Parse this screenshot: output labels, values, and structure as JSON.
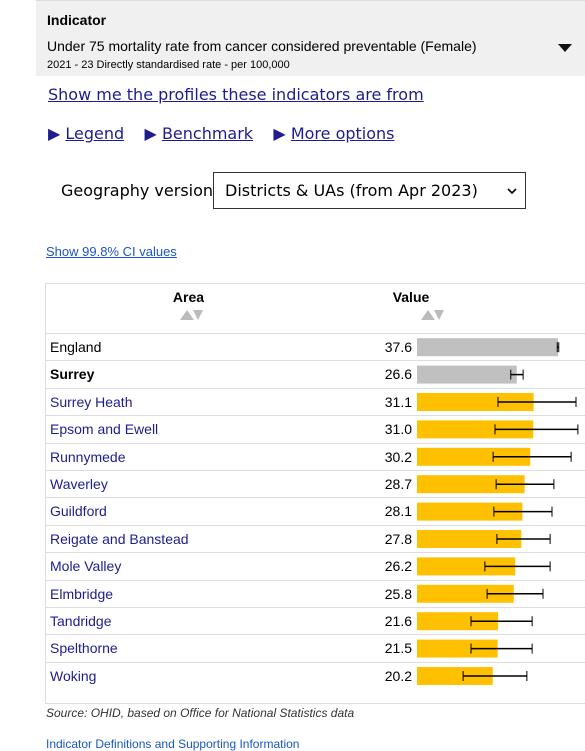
{
  "header": {
    "label": "Indicator",
    "title": "Under 75 mortality rate from cancer considered preventable (Female)",
    "subtitle": "2021 - 23  Directly standardised rate - per 100,000"
  },
  "profiles_link": "Show me the profiles these indicators are from",
  "options": [
    "Legend",
    "Benchmark",
    "More options"
  ],
  "geography": {
    "label": "Geography version",
    "selected": "Districts & UAs (from Apr 2023)"
  },
  "ci_link": "Show 99.8% CI values",
  "table": {
    "headers": [
      "Area",
      "Value"
    ],
    "rows": [
      {
        "area": "England",
        "value": 37.6,
        "value_label": "37.6",
        "lower": 37.4,
        "upper": 37.8,
        "color": "#c0c0c0",
        "link": false,
        "bold": false
      },
      {
        "area": "Surrey",
        "value": 26.6,
        "value_label": "26.6",
        "lower": 25.0,
        "upper": 28.3,
        "color": "#c0c0c0",
        "link": false,
        "bold": true
      },
      {
        "area": "Surrey Heath",
        "value": 31.1,
        "value_label": "31.1",
        "lower": 21.6,
        "upper": 42.4,
        "color": "#ffc000",
        "link": true,
        "bold": false
      },
      {
        "area": "Epsom and Ewell",
        "value": 31.0,
        "value_label": "31.0",
        "lower": 20.8,
        "upper": 42.9,
        "color": "#ffc000",
        "link": true,
        "bold": false
      },
      {
        "area": "Runnymede",
        "value": 30.2,
        "value_label": "30.2",
        "lower": 20.3,
        "upper": 41.1,
        "color": "#ffc000",
        "link": true,
        "bold": false
      },
      {
        "area": "Waverley",
        "value": 28.7,
        "value_label": "28.7",
        "lower": 21.1,
        "upper": 36.5,
        "color": "#ffc000",
        "link": true,
        "bold": false
      },
      {
        "area": "Guildford",
        "value": 28.1,
        "value_label": "28.1",
        "lower": 20.5,
        "upper": 36.0,
        "color": "#ffc000",
        "link": true,
        "bold": false
      },
      {
        "area": "Reigate and Banstead",
        "value": 27.8,
        "value_label": "27.8",
        "lower": 21.3,
        "upper": 35.5,
        "color": "#ffc000",
        "link": true,
        "bold": false
      },
      {
        "area": "Mole Valley",
        "value": 26.2,
        "value_label": "26.2",
        "lower": 18.1,
        "upper": 35.5,
        "color": "#ffc000",
        "link": true,
        "bold": false
      },
      {
        "area": "Elmbridge",
        "value": 25.8,
        "value_label": "25.8",
        "lower": 18.7,
        "upper": 33.6,
        "color": "#ffc000",
        "link": true,
        "bold": false
      },
      {
        "area": "Tandridge",
        "value": 21.6,
        "value_label": "21.6",
        "lower": 14.4,
        "upper": 30.7,
        "color": "#ffc000",
        "link": true,
        "bold": false
      },
      {
        "area": "Spelthorne",
        "value": 21.5,
        "value_label": "21.5",
        "lower": 14.4,
        "upper": 30.7,
        "color": "#ffc000",
        "link": true,
        "bold": false
      },
      {
        "area": "Woking",
        "value": 20.2,
        "value_label": "20.2",
        "lower": 12.3,
        "upper": 29.3,
        "color": "#ffc000",
        "link": true,
        "bold": false
      }
    ]
  },
  "source": "Source: OHID, based on Office for National Statistics data",
  "definitions_link": "Indicator Definitions and Supporting Information"
}
